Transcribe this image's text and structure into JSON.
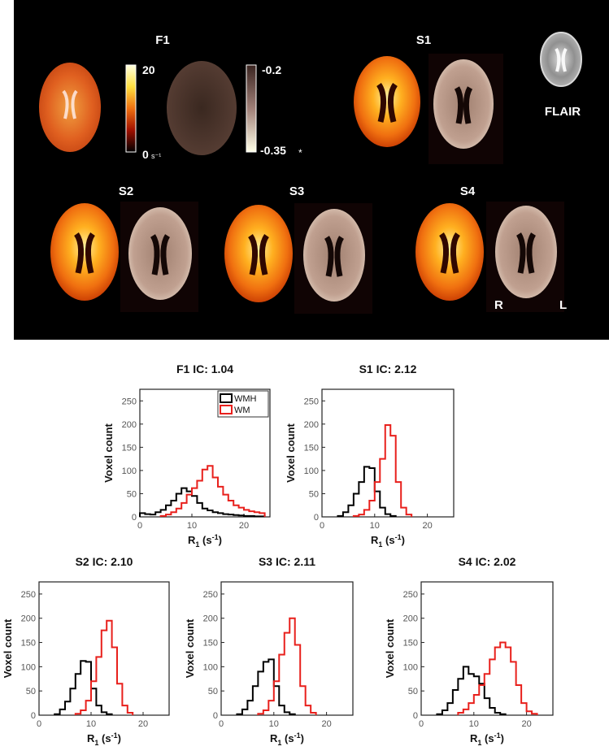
{
  "colors": {
    "background_panel": "#000000",
    "wmh": "#000000",
    "wm": "#e8201c"
  },
  "maps": {
    "panel_labels": [
      "F1",
      "S1",
      "S2",
      "S3",
      "S4"
    ],
    "flair_label": "FLAIR",
    "r1_colorbar": {
      "max_label": "20",
      "min_label": "0",
      "unit": "s⁻¹"
    },
    "ic_colorbar": {
      "max_label": "-0.2",
      "min_label": "-0.35",
      "marker": "*"
    },
    "orientation": {
      "right": "R",
      "left": "L"
    }
  },
  "chart_data": [
    {
      "type": "histogram",
      "title": "F1 IC: 1.04",
      "xlabel": "R",
      "xlabel_sub": "1",
      "xlabel_unit": "(s",
      "xlabel_unit_sup": "-1",
      "xlabel_close": ")",
      "ylabel": "Voxel count",
      "xlim": [
        0,
        25
      ],
      "ylim": [
        0,
        275
      ],
      "xticks": [
        0,
        10,
        20
      ],
      "yticks": [
        0,
        50,
        100,
        150,
        200,
        250
      ],
      "legend": {
        "position": "top-right",
        "entries": [
          "WMH",
          "WM"
        ]
      },
      "bin_width": 1,
      "series": [
        {
          "name": "WMH",
          "color": "#000000",
          "bin_start": 0,
          "values": [
            8,
            6,
            5,
            10,
            15,
            25,
            35,
            50,
            62,
            55,
            45,
            30,
            18,
            14,
            10,
            8,
            6,
            5,
            4,
            3,
            2,
            2,
            1,
            1
          ]
        },
        {
          "name": "WM",
          "color": "#e8201c",
          "bin_start": 4,
          "values": [
            2,
            5,
            10,
            18,
            30,
            48,
            62,
            78,
            102,
            110,
            85,
            65,
            48,
            35,
            25,
            20,
            15,
            12,
            10,
            8
          ]
        }
      ]
    },
    {
      "type": "histogram",
      "title": "S1 IC: 2.12",
      "xlabel": "R",
      "xlabel_sub": "1",
      "xlabel_unit": "(s",
      "xlabel_unit_sup": "-1",
      "xlabel_close": ")",
      "ylabel": "Voxel count",
      "xlim": [
        0,
        25
      ],
      "ylim": [
        0,
        275
      ],
      "xticks": [
        0,
        10,
        20
      ],
      "yticks": [
        0,
        50,
        100,
        150,
        200,
        250
      ],
      "bin_width": 1,
      "series": [
        {
          "name": "WMH",
          "color": "#000000",
          "bin_start": 3,
          "values": [
            2,
            10,
            25,
            50,
            75,
            108,
            105,
            55,
            20,
            6,
            2
          ]
        },
        {
          "name": "WM",
          "color": "#e8201c",
          "bin_start": 6,
          "values": [
            2,
            5,
            15,
            35,
            75,
            125,
            198,
            175,
            75,
            20,
            5
          ]
        }
      ]
    },
    {
      "type": "histogram",
      "title": "S2 IC: 2.10",
      "xlabel": "R",
      "xlabel_sub": "1",
      "xlabel_unit": "(s",
      "xlabel_unit_sup": "-1",
      "xlabel_close": ")",
      "ylabel": "Voxel count",
      "xlim": [
        0,
        25
      ],
      "ylim": [
        0,
        275
      ],
      "xticks": [
        0,
        10,
        20
      ],
      "yticks": [
        0,
        50,
        100,
        150,
        200,
        250
      ],
      "bin_width": 1,
      "series": [
        {
          "name": "WMH",
          "color": "#000000",
          "bin_start": 3,
          "values": [
            2,
            12,
            28,
            55,
            85,
            112,
            110,
            55,
            20,
            6,
            2
          ]
        },
        {
          "name": "WM",
          "color": "#e8201c",
          "bin_start": 7,
          "values": [
            3,
            10,
            30,
            70,
            120,
            175,
            195,
            140,
            65,
            20,
            5
          ]
        }
      ]
    },
    {
      "type": "histogram",
      "title": "S3 IC: 2.11",
      "xlabel": "R",
      "xlabel_sub": "1",
      "xlabel_unit": "(s",
      "xlabel_unit_sup": "-1",
      "xlabel_close": ")",
      "ylabel": "Voxel count",
      "xlim": [
        0,
        25
      ],
      "ylim": [
        0,
        275
      ],
      "xticks": [
        0,
        10,
        20
      ],
      "yticks": [
        0,
        50,
        100,
        150,
        200,
        250
      ],
      "bin_width": 1,
      "series": [
        {
          "name": "WMH",
          "color": "#000000",
          "bin_start": 3,
          "values": [
            2,
            12,
            30,
            60,
            90,
            110,
            115,
            60,
            20,
            6,
            2
          ]
        },
        {
          "name": "WM",
          "color": "#e8201c",
          "bin_start": 7,
          "values": [
            3,
            10,
            30,
            70,
            125,
            170,
            200,
            145,
            60,
            20,
            5
          ]
        }
      ]
    },
    {
      "type": "histogram",
      "title": "S4 IC: 2.02",
      "xlabel": "R",
      "xlabel_sub": "1",
      "xlabel_unit": "(s",
      "xlabel_unit_sup": "-1",
      "xlabel_close": ")",
      "ylabel": "Voxel count",
      "xlim": [
        0,
        25
      ],
      "ylim": [
        0,
        275
      ],
      "xticks": [
        0,
        10,
        20
      ],
      "yticks": [
        0,
        50,
        100,
        150,
        200,
        250
      ],
      "bin_width": 1,
      "series": [
        {
          "name": "WMH",
          "color": "#000000",
          "bin_start": 3,
          "values": [
            2,
            10,
            25,
            52,
            75,
            100,
            85,
            80,
            65,
            35,
            15,
            5,
            2
          ]
        },
        {
          "name": "WM",
          "color": "#e8201c",
          "bin_start": 7,
          "values": [
            5,
            12,
            25,
            42,
            62,
            85,
            115,
            140,
            150,
            140,
            110,
            62,
            25,
            8,
            3
          ]
        }
      ]
    }
  ]
}
